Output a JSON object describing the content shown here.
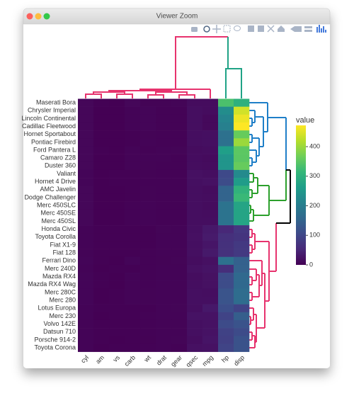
{
  "window_title": "Viewer Zoom",
  "chart_data": {
    "type": "heatmap",
    "columns": [
      "cyl",
      "am",
      "vs",
      "carb",
      "wt",
      "drat",
      "gear",
      "qsec",
      "mpg",
      "hp",
      "disp"
    ],
    "rows": [
      "Maserati Bora",
      "Chrysler Imperial",
      "Lincoln Continental",
      "Cadillac Fleetwood",
      "Hornet Sportabout",
      "Pontiac Firebird",
      "Ford Pantera L",
      "Camaro Z28",
      "Duster 360",
      "Valiant",
      "Hornet 4 Drive",
      "AMC Javelin",
      "Dodge Challenger",
      "Merc 450SLC",
      "Merc 450SE",
      "Merc 450SL",
      "Honda Civic",
      "Toyota Corolla",
      "Fiat X1-9",
      "Fiat 128",
      "Ferrari Dino",
      "Merc 240D",
      "Mazda RX4",
      "Mazda RX4 Wag",
      "Merc 280C",
      "Merc 280",
      "Lotus Europa",
      "Merc 230",
      "Volvo 142E",
      "Datsun 710",
      "Porsche 914-2",
      "Toyota Corona"
    ],
    "values": [
      [
        8,
        1,
        0,
        8,
        3.57,
        3.54,
        5,
        14.6,
        15.0,
        335,
        301
      ],
      [
        8,
        0,
        0,
        4,
        5.345,
        3.23,
        3,
        17.42,
        14.7,
        230,
        440
      ],
      [
        8,
        0,
        0,
        4,
        5.424,
        3.0,
        3,
        17.82,
        10.4,
        215,
        460
      ],
      [
        8,
        0,
        0,
        4,
        5.25,
        2.93,
        3,
        17.98,
        10.4,
        205,
        472
      ],
      [
        8,
        0,
        0,
        2,
        3.44,
        3.15,
        3,
        17.02,
        18.7,
        175,
        360
      ],
      [
        8,
        0,
        0,
        2,
        3.845,
        3.08,
        3,
        17.05,
        19.2,
        175,
        400
      ],
      [
        8,
        1,
        0,
        4,
        3.17,
        4.22,
        5,
        14.5,
        15.8,
        264,
        351
      ],
      [
        8,
        0,
        0,
        4,
        3.84,
        3.73,
        3,
        15.41,
        13.3,
        245,
        350
      ],
      [
        8,
        0,
        0,
        4,
        3.57,
        3.21,
        3,
        15.84,
        14.3,
        245,
        360
      ],
      [
        6,
        0,
        1,
        1,
        3.46,
        2.76,
        3,
        20.22,
        18.1,
        105,
        225
      ],
      [
        6,
        0,
        1,
        1,
        3.215,
        3.08,
        3,
        19.44,
        21.4,
        110,
        258
      ],
      [
        8,
        0,
        0,
        2,
        3.435,
        3.15,
        3,
        17.3,
        15.2,
        150,
        304
      ],
      [
        8,
        0,
        0,
        2,
        3.52,
        2.76,
        3,
        16.87,
        15.5,
        150,
        318
      ],
      [
        8,
        0,
        0,
        3,
        3.78,
        3.07,
        3,
        18.0,
        15.2,
        180,
        275.8
      ],
      [
        8,
        0,
        0,
        3,
        4.07,
        3.07,
        3,
        17.4,
        16.4,
        180,
        275.8
      ],
      [
        8,
        0,
        0,
        3,
        3.73,
        3.07,
        3,
        17.6,
        17.3,
        180,
        275.8
      ],
      [
        4,
        1,
        1,
        2,
        1.615,
        4.93,
        4,
        18.52,
        30.4,
        52,
        75.7
      ],
      [
        4,
        1,
        1,
        1,
        1.835,
        4.22,
        4,
        19.9,
        33.9,
        65,
        71.1
      ],
      [
        4,
        1,
        1,
        1,
        1.935,
        4.08,
        4,
        18.9,
        27.3,
        66,
        79.0
      ],
      [
        4,
        1,
        1,
        1,
        2.2,
        4.08,
        4,
        19.47,
        32.4,
        66,
        78.7
      ],
      [
        6,
        1,
        0,
        6,
        2.77,
        3.62,
        5,
        15.5,
        19.7,
        175,
        145
      ],
      [
        4,
        0,
        1,
        2,
        3.19,
        3.69,
        4,
        20.0,
        24.4,
        62,
        146.7
      ],
      [
        6,
        1,
        0,
        4,
        2.62,
        3.9,
        4,
        16.46,
        21.0,
        110,
        160
      ],
      [
        6,
        1,
        0,
        4,
        2.875,
        3.9,
        4,
        17.02,
        21.0,
        110,
        160
      ],
      [
        6,
        0,
        1,
        4,
        3.44,
        3.92,
        4,
        18.9,
        17.8,
        123,
        167.6
      ],
      [
        6,
        0,
        1,
        4,
        3.44,
        3.92,
        4,
        18.3,
        19.2,
        123,
        167.6
      ],
      [
        4,
        1,
        1,
        2,
        1.513,
        3.77,
        5,
        16.9,
        30.4,
        113,
        95.1
      ],
      [
        4,
        0,
        1,
        2,
        3.15,
        3.92,
        4,
        22.9,
        22.8,
        95,
        140.8
      ],
      [
        4,
        1,
        1,
        2,
        2.78,
        4.11,
        4,
        18.6,
        21.4,
        109,
        121
      ],
      [
        4,
        1,
        1,
        1,
        2.32,
        3.85,
        4,
        18.61,
        22.8,
        93,
        108
      ],
      [
        4,
        1,
        0,
        2,
        2.14,
        4.43,
        5,
        16.7,
        26.0,
        91,
        120.3
      ],
      [
        4,
        0,
        1,
        1,
        2.465,
        3.7,
        3,
        20.01,
        21.5,
        97,
        120.1
      ]
    ],
    "colorbar_title": "value",
    "zlim": [
      0,
      472
    ],
    "zticks": [
      0,
      100,
      200,
      300,
      400
    ],
    "colorscale": [
      "#440154",
      "#482878",
      "#3e4989",
      "#31688e",
      "#26828e",
      "#1f9e89",
      "#35b779",
      "#6ece58",
      "#b5de2b",
      "#fde725"
    ]
  }
}
